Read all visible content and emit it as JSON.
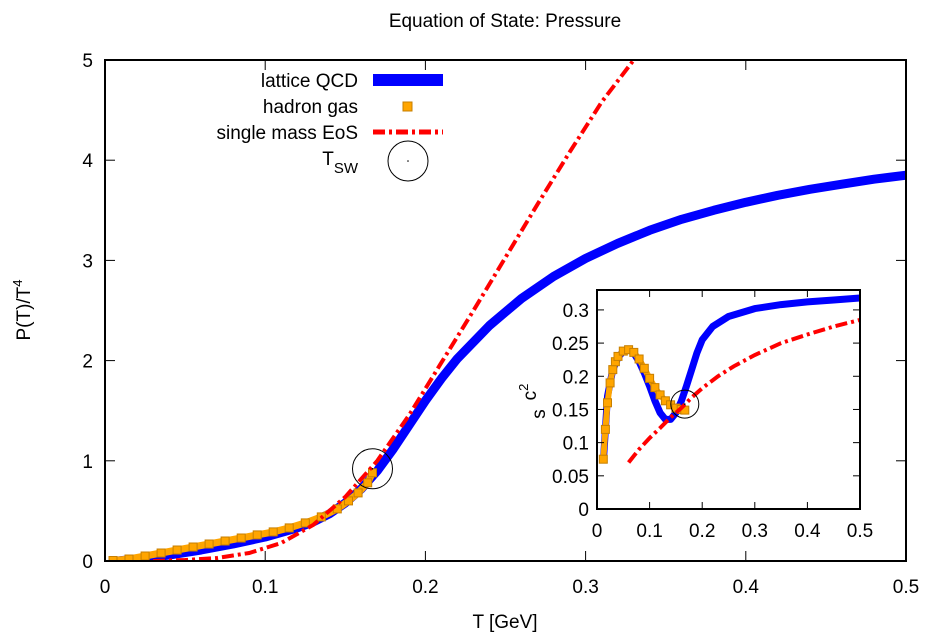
{
  "chart_data": [
    {
      "type": "line",
      "title": "Equation of State: Pressure",
      "xlabel": "T [GeV]",
      "ylabel": "P(T)/T",
      "ylabel_superscript": "4",
      "xlim": [
        0,
        0.5
      ],
      "ylim": [
        0,
        5
      ],
      "xticks": [
        "0",
        "0.1",
        "0.2",
        "0.3",
        "0.4",
        "0.5"
      ],
      "yticks": [
        "0",
        "1",
        "2",
        "3",
        "4",
        "5"
      ],
      "grid": false,
      "legend_position": "top-left",
      "series": [
        {
          "name": "lattice QCD",
          "color": "#0000ff",
          "style": "thick-line",
          "x": [
            0.008,
            0.02,
            0.04,
            0.06,
            0.08,
            0.1,
            0.12,
            0.13,
            0.14,
            0.15,
            0.16,
            0.17,
            0.18,
            0.19,
            0.2,
            0.21,
            0.22,
            0.24,
            0.26,
            0.28,
            0.3,
            0.32,
            0.34,
            0.36,
            0.38,
            0.4,
            0.42,
            0.44,
            0.46,
            0.48,
            0.5
          ],
          "y": [
            0.0,
            0.02,
            0.06,
            0.11,
            0.17,
            0.24,
            0.33,
            0.39,
            0.47,
            0.58,
            0.72,
            0.9,
            1.12,
            1.36,
            1.6,
            1.82,
            2.02,
            2.35,
            2.62,
            2.84,
            3.02,
            3.17,
            3.3,
            3.41,
            3.5,
            3.58,
            3.65,
            3.71,
            3.76,
            3.81,
            3.85
          ]
        },
        {
          "name": "hadron gas",
          "color": "#ffa500",
          "style": "square-markers",
          "x": [
            0.005,
            0.015,
            0.025,
            0.035,
            0.045,
            0.055,
            0.065,
            0.075,
            0.085,
            0.095,
            0.105,
            0.115,
            0.125,
            0.135,
            0.145,
            0.152,
            0.158,
            0.164,
            0.167
          ],
          "y": [
            0.005,
            0.02,
            0.05,
            0.08,
            0.11,
            0.14,
            0.17,
            0.2,
            0.23,
            0.26,
            0.29,
            0.33,
            0.38,
            0.44,
            0.52,
            0.6,
            0.68,
            0.78,
            0.88
          ]
        },
        {
          "name": "single mass EoS",
          "color": "#ff0000",
          "style": "dash-dot",
          "x": [
            0.03,
            0.05,
            0.07,
            0.09,
            0.11,
            0.13,
            0.15,
            0.17,
            0.19,
            0.21,
            0.23,
            0.25,
            0.27,
            0.29,
            0.31,
            0.33
          ],
          "y": [
            0.0,
            0.01,
            0.03,
            0.08,
            0.18,
            0.36,
            0.64,
            1.0,
            1.46,
            1.98,
            2.5,
            3.03,
            3.56,
            4.08,
            4.58,
            5.0
          ]
        },
        {
          "name": "T",
          "name_subscript": "SW",
          "style": "open-circle",
          "x": [
            0.167
          ],
          "y": [
            0.92
          ]
        }
      ]
    },
    {
      "type": "line",
      "title": "",
      "xlabel": "",
      "ylabel": "c",
      "ylabel_subscript": "s",
      "ylabel_superscript": "2",
      "xlim": [
        0,
        0.5
      ],
      "ylim": [
        0,
        0.33
      ],
      "xticks": [
        "0",
        "0.1",
        "0.2",
        "0.3",
        "0.4",
        "0.5"
      ],
      "yticks": [
        "0",
        "0.05",
        "0.1",
        "0.15",
        "0.2",
        "0.25",
        "0.3"
      ],
      "position": "inset-lower-right",
      "series": [
        {
          "color": "#0000ff",
          "style": "thick-line",
          "x": [
            0.012,
            0.02,
            0.03,
            0.04,
            0.05,
            0.06,
            0.07,
            0.08,
            0.09,
            0.1,
            0.11,
            0.12,
            0.13,
            0.14,
            0.15,
            0.16,
            0.17,
            0.18,
            0.19,
            0.2,
            0.22,
            0.25,
            0.3,
            0.35,
            0.4,
            0.45,
            0.5
          ],
          "y": [
            0.07,
            0.17,
            0.21,
            0.228,
            0.238,
            0.24,
            0.235,
            0.222,
            0.205,
            0.185,
            0.163,
            0.145,
            0.135,
            0.135,
            0.145,
            0.162,
            0.185,
            0.21,
            0.235,
            0.255,
            0.275,
            0.29,
            0.302,
            0.308,
            0.312,
            0.315,
            0.318
          ]
        },
        {
          "color": "#ffa500",
          "style": "square-markers",
          "x": [
            0.012,
            0.016,
            0.02,
            0.025,
            0.03,
            0.035,
            0.04,
            0.05,
            0.06,
            0.07,
            0.08,
            0.09,
            0.1,
            0.11,
            0.12,
            0.13,
            0.14,
            0.15,
            0.16,
            0.167
          ],
          "y": [
            0.075,
            0.12,
            0.16,
            0.19,
            0.21,
            0.222,
            0.23,
            0.238,
            0.24,
            0.236,
            0.226,
            0.212,
            0.197,
            0.183,
            0.172,
            0.163,
            0.157,
            0.152,
            0.15,
            0.149
          ]
        },
        {
          "color": "#ff0000",
          "style": "dash-dot",
          "x": [
            0.06,
            0.08,
            0.1,
            0.12,
            0.14,
            0.16,
            0.18,
            0.2,
            0.23,
            0.26,
            0.3,
            0.35,
            0.4,
            0.45,
            0.5
          ],
          "y": [
            0.07,
            0.09,
            0.107,
            0.122,
            0.138,
            0.152,
            0.168,
            0.182,
            0.2,
            0.215,
            0.232,
            0.25,
            0.263,
            0.275,
            0.285
          ]
        },
        {
          "style": "open-circle",
          "x": [
            0.167
          ],
          "y": [
            0.158
          ]
        }
      ]
    }
  ]
}
